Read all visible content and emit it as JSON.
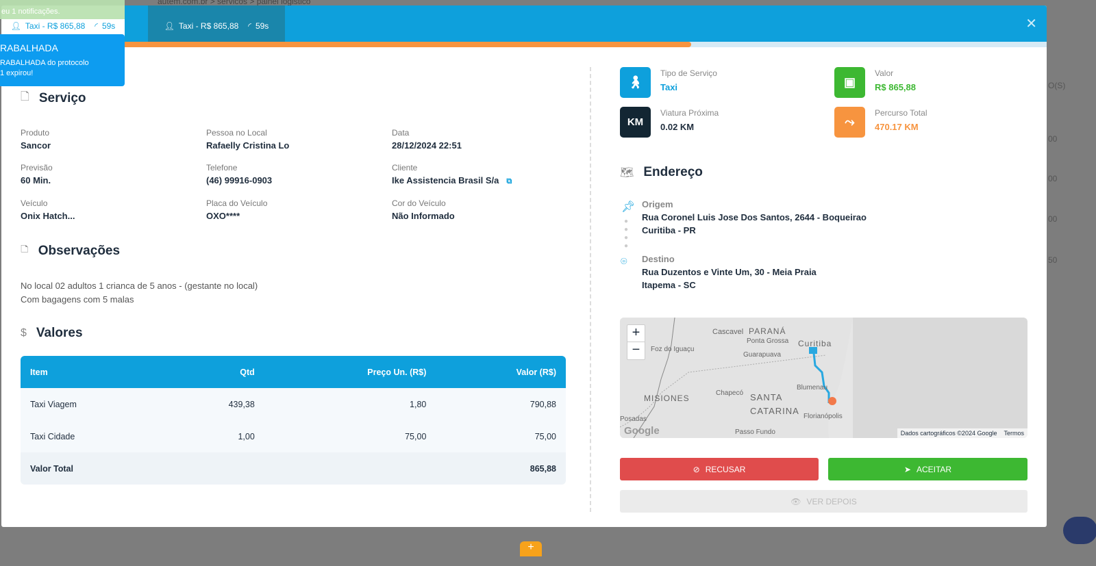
{
  "background": {
    "breadcrumb": "autem.com.br > servicos > painel logistico",
    "col_header": "O(S)",
    "col_values": [
      "00",
      "00",
      "00",
      "50"
    ]
  },
  "tabs": [
    {
      "label": "Taxi  - R$ 865,88",
      "timer": "59s"
    },
    {
      "label": "Taxi  - R$ 865,88",
      "timer": "59s"
    }
  ],
  "progress_percent": 66,
  "toasts": {
    "green": "eu 1 notificações.",
    "blue_title": "RABALHADA",
    "blue_body1": "RABALHADA do protocolo",
    "blue_body2": "1 expirou!"
  },
  "servico": {
    "title": "Serviço",
    "fields": [
      {
        "label": "Produto",
        "value": "Sancor"
      },
      {
        "label": "Pessoa no Local",
        "value": "Rafaelly Cristina Lo"
      },
      {
        "label": "Data",
        "value": "28/12/2024 22:51"
      },
      {
        "label": "Previsão",
        "value": "60 Min."
      },
      {
        "label": "Telefone",
        "value": "(46) 99916-0903"
      },
      {
        "label": "Cliente",
        "value": "Ike Assistencia Brasil S/a"
      },
      {
        "label": "Veículo",
        "value": "Onix Hatch..."
      },
      {
        "label": "Placa do Veículo",
        "value": "OXO****"
      },
      {
        "label": "Cor do Veículo",
        "value": "Não Informado"
      }
    ]
  },
  "observacoes": {
    "title": "Observações",
    "lines": [
      "No local 02 adultos 1 crianca de 5 anos - (gestante no local)",
      "Com bagagens com 5 malas"
    ]
  },
  "valores": {
    "title": "Valores",
    "headers": [
      "Item",
      "Qtd",
      "Preço Un. (R$)",
      "Valor (R$)"
    ],
    "rows": [
      [
        "Taxi Viagem",
        "439,38",
        "1,80",
        "790,88"
      ],
      [
        "Taxi Cidade",
        "1,00",
        "75,00",
        "75,00"
      ]
    ],
    "total_label": "Valor Total",
    "total": "865,88"
  },
  "cards": [
    {
      "label": "Tipo de Serviço",
      "value": "Taxi",
      "color": "#0ea0dc"
    },
    {
      "label": "Valor",
      "value": "R$ 865,88",
      "color": "#3db832"
    },
    {
      "label": "Viatura Próxima",
      "value": "0.02 KM",
      "icon_text": "KM",
      "color": "#132633"
    },
    {
      "label": "Percurso Total",
      "value": "470.17 KM",
      "color": "#f7943f"
    }
  ],
  "endereco": {
    "title": "Endereço",
    "origem_label": "Origem",
    "origem1": "Rua Coronel Luis Jose Dos Santos, 2644 - Boqueirao",
    "origem2": "Curitiba - PR",
    "destino_label": "Destino",
    "destino1": "Rua Duzentos e Vinte Um, 30 - Meia Praia",
    "destino2": "Itapema - SC"
  },
  "map": {
    "labels": [
      "Cascavel",
      "PARANÁ",
      "Ponta Grossa",
      "Curitiba",
      "Foz do Iguaçu",
      "Guarapuava",
      "MISIONES",
      "Chapecó",
      "SANTA",
      "CATARINA",
      "Blumenau",
      "Florianópolis",
      "Posadas",
      "Passo Fundo"
    ],
    "attribution": "Dados cartográficos ©2024 Google",
    "terms": "Termos",
    "google": "Google",
    "zoom_in": "+",
    "zoom_out": "−"
  },
  "actions": {
    "refuse": "RECUSAR",
    "accept": "ACEITAR",
    "later": "VER DEPOIS"
  },
  "fab": "+"
}
